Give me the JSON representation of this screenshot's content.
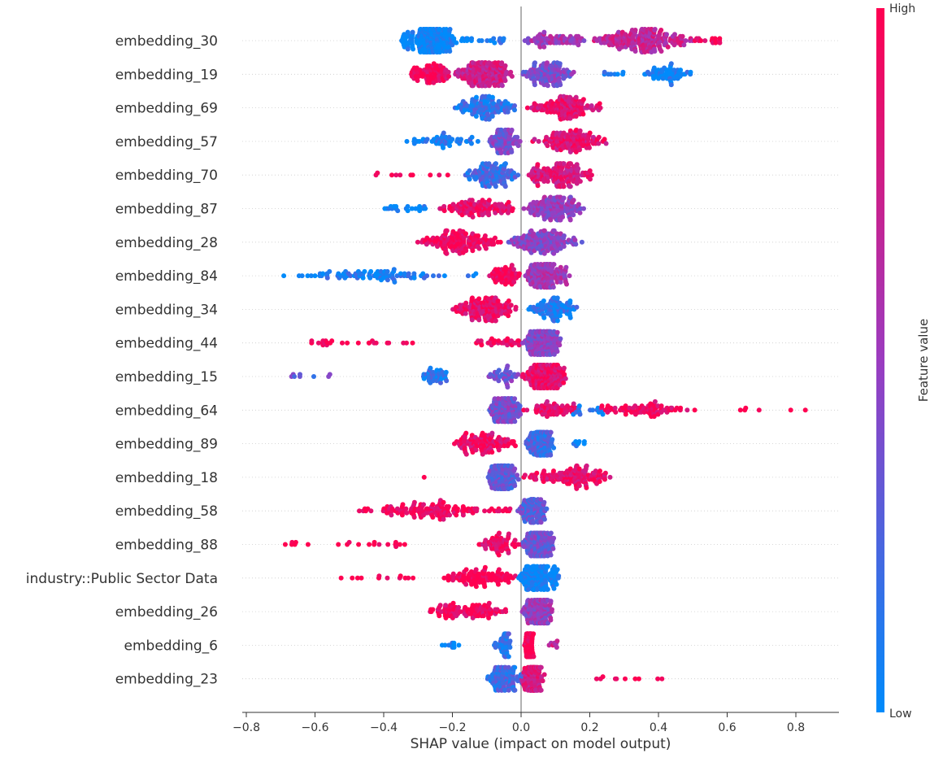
{
  "chart_data": {
    "type": "scatter",
    "subtype": "beeswarm",
    "title": "",
    "xlabel": "SHAP value (impact on model output)",
    "ylabel": "",
    "xlim": [
      -0.81,
      0.925
    ],
    "xticks": [
      -0.8,
      -0.6,
      -0.4,
      -0.2,
      0.0,
      0.2,
      0.4,
      0.6,
      0.8
    ],
    "xtick_labels": [
      "−0.8",
      "−0.6",
      "−0.4",
      "−0.2",
      "0.0",
      "0.2",
      "0.4",
      "0.6",
      "0.8"
    ],
    "grid": false,
    "colorbar": {
      "label": "Feature value",
      "high_label": "High",
      "low_label": "Low",
      "low_color": "#008bfb",
      "high_color": "#ff0051",
      "mid_color": "#9b3cc0"
    },
    "cluster_format": [
      "shap_from",
      "shap_to",
      "feature_value_0_to_1",
      "approx_count"
    ],
    "features": [
      {
        "name": "embedding_30",
        "clusters": [
          [
            -0.36,
            -0.18,
            0.0,
            200
          ],
          [
            -0.18,
            -0.05,
            0.05,
            20
          ],
          [
            0.0,
            0.2,
            0.55,
            70
          ],
          [
            0.2,
            0.5,
            0.7,
            200
          ],
          [
            0.5,
            0.58,
            0.95,
            15
          ]
        ]
      },
      {
        "name": "embedding_19",
        "clusters": [
          [
            -0.34,
            -0.2,
            0.95,
            80
          ],
          [
            -0.2,
            -0.02,
            0.75,
            200
          ],
          [
            0.0,
            0.16,
            0.4,
            120
          ],
          [
            0.22,
            0.3,
            0.05,
            8
          ],
          [
            0.35,
            0.5,
            0.05,
            60
          ]
        ]
      },
      {
        "name": "embedding_69",
        "clusters": [
          [
            -0.2,
            0.0,
            0.15,
            120
          ],
          [
            0.01,
            0.24,
            0.85,
            130
          ]
        ]
      },
      {
        "name": "embedding_57",
        "clusters": [
          [
            -0.37,
            -0.1,
            0.1,
            50
          ],
          [
            -0.1,
            0.0,
            0.4,
            100
          ],
          [
            0.02,
            0.26,
            0.85,
            130
          ]
        ]
      },
      {
        "name": "embedding_70",
        "clusters": [
          [
            -0.5,
            -0.2,
            1.0,
            10
          ],
          [
            -0.17,
            0.0,
            0.2,
            120
          ],
          [
            0.0,
            0.22,
            0.8,
            160
          ]
        ]
      },
      {
        "name": "embedding_87",
        "clusters": [
          [
            -0.42,
            -0.25,
            0.05,
            20
          ],
          [
            -0.25,
            0.0,
            0.9,
            110
          ],
          [
            0.0,
            0.19,
            0.5,
            150
          ]
        ]
      },
      {
        "name": "embedding_28",
        "clusters": [
          [
            -0.31,
            -0.05,
            0.95,
            150
          ],
          [
            -0.05,
            0.18,
            0.45,
            150
          ]
        ]
      },
      {
        "name": "embedding_84",
        "clusters": [
          [
            -0.73,
            -0.1,
            0.05,
            90
          ],
          [
            -0.1,
            0.0,
            0.95,
            60
          ],
          [
            0.0,
            0.15,
            0.55,
            160
          ]
        ]
      },
      {
        "name": "embedding_34",
        "clusters": [
          [
            -0.21,
            0.0,
            0.9,
            150
          ],
          [
            0.01,
            0.17,
            0.1,
            100
          ]
        ]
      },
      {
        "name": "embedding_44",
        "clusters": [
          [
            -0.63,
            -0.3,
            1.0,
            25
          ],
          [
            -0.13,
            0.0,
            0.95,
            30
          ],
          [
            0.0,
            0.12,
            0.45,
            180
          ]
        ]
      },
      {
        "name": "embedding_15",
        "clusters": [
          [
            -0.68,
            -0.55,
            0.3,
            8
          ],
          [
            -0.3,
            -0.2,
            0.1,
            40
          ],
          [
            -0.1,
            0.0,
            0.35,
            40
          ],
          [
            0.0,
            0.14,
            0.9,
            170
          ]
        ]
      },
      {
        "name": "embedding_64",
        "clusters": [
          [
            -0.1,
            0.01,
            0.4,
            150
          ],
          [
            0.0,
            0.2,
            0.9,
            60
          ],
          [
            0.15,
            0.25,
            0.05,
            15
          ],
          [
            0.22,
            0.52,
            0.95,
            80
          ],
          [
            0.6,
            0.84,
            1.0,
            6
          ]
        ]
      },
      {
        "name": "embedding_89",
        "clusters": [
          [
            -0.22,
            0.0,
            0.9,
            110
          ],
          [
            0.01,
            0.1,
            0.2,
            150
          ],
          [
            0.15,
            0.19,
            0.0,
            8
          ]
        ]
      },
      {
        "name": "embedding_18",
        "clusters": [
          [
            -0.29,
            -0.27,
            1.0,
            1
          ],
          [
            -0.1,
            0.0,
            0.3,
            150
          ],
          [
            0.0,
            0.28,
            0.9,
            130
          ]
        ]
      },
      {
        "name": "embedding_58",
        "clusters": [
          [
            -0.49,
            -0.02,
            0.95,
            140
          ],
          [
            -0.01,
            0.08,
            0.3,
            120
          ]
        ]
      },
      {
        "name": "embedding_88",
        "clusters": [
          [
            -0.69,
            -0.32,
            1.0,
            20
          ],
          [
            -0.13,
            0.0,
            0.9,
            60
          ],
          [
            0.0,
            0.1,
            0.35,
            150
          ]
        ]
      },
      {
        "name": "industry::Public Sector Data",
        "clusters": [
          [
            -0.53,
            -0.31,
            1.0,
            12
          ],
          [
            -0.23,
            -0.01,
            1.0,
            100
          ],
          [
            -0.01,
            0.11,
            0.0,
            180
          ]
        ]
      },
      {
        "name": "embedding_26",
        "clusters": [
          [
            -0.29,
            -0.03,
            0.95,
            100
          ],
          [
            0.0,
            0.1,
            0.5,
            150
          ]
        ]
      },
      {
        "name": "embedding_6",
        "clusters": [
          [
            -0.23,
            -0.17,
            0.05,
            10
          ],
          [
            -0.08,
            -0.02,
            0.15,
            50
          ],
          [
            0.01,
            0.04,
            1.0,
            100
          ],
          [
            0.08,
            0.12,
            0.7,
            8
          ]
        ]
      },
      {
        "name": "embedding_23",
        "clusters": [
          [
            -0.11,
            0.01,
            0.2,
            120
          ],
          [
            0.0,
            0.07,
            0.8,
            150
          ],
          [
            0.2,
            0.42,
            1.0,
            10
          ]
        ]
      }
    ]
  }
}
